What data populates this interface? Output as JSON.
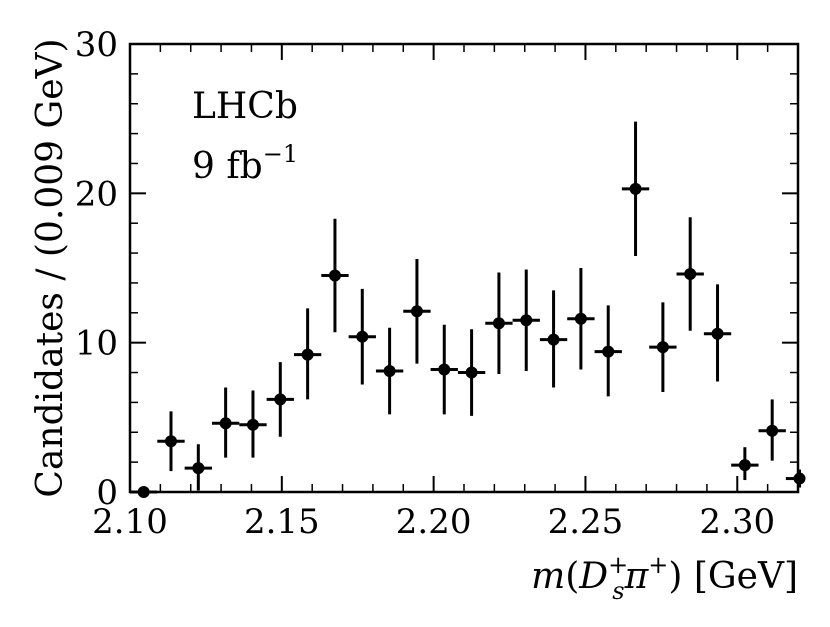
{
  "chart_data": {
    "type": "scatter",
    "experiment_label": "LHCb",
    "luminosity_label": "9 fb",
    "luminosity_exponent": "−1",
    "xlabel_parts": {
      "m": "m",
      "open": "(",
      "D": "D",
      "D_sub": "s",
      "D_sup": "+",
      "pi": "π",
      "pi_sup": "+",
      "close": ")",
      "unit": " [GeV]"
    },
    "ylabel": "Candidates / (0.009 GeV)",
    "xlim": [
      2.1,
      2.32
    ],
    "ylim": [
      0,
      30
    ],
    "xticks": [
      "2.10",
      "2.15",
      "2.20",
      "2.25",
      "2.30"
    ],
    "yticks": [
      "0",
      "10",
      "20",
      "30"
    ],
    "bin_width": 0.009,
    "points": [
      {
        "x": 2.1045,
        "y": 0.0,
        "err_low": 0.0,
        "err_high": 0.0
      },
      {
        "x": 2.1135,
        "y": 3.4,
        "err_low": 2.0,
        "err_high": 2.0
      },
      {
        "x": 2.1225,
        "y": 1.6,
        "err_low": 1.5,
        "err_high": 1.6
      },
      {
        "x": 2.1315,
        "y": 4.6,
        "err_low": 2.3,
        "err_high": 2.4
      },
      {
        "x": 2.1405,
        "y": 4.5,
        "err_low": 2.2,
        "err_high": 2.3
      },
      {
        "x": 2.1495,
        "y": 6.2,
        "err_low": 2.5,
        "err_high": 2.5
      },
      {
        "x": 2.1585,
        "y": 9.2,
        "err_low": 3.0,
        "err_high": 3.1
      },
      {
        "x": 2.1675,
        "y": 14.5,
        "err_low": 3.8,
        "err_high": 3.8
      },
      {
        "x": 2.1765,
        "y": 10.4,
        "err_low": 3.2,
        "err_high": 3.2
      },
      {
        "x": 2.1855,
        "y": 8.1,
        "err_low": 2.9,
        "err_high": 2.9
      },
      {
        "x": 2.1945,
        "y": 12.1,
        "err_low": 3.5,
        "err_high": 3.5
      },
      {
        "x": 2.2035,
        "y": 8.2,
        "err_low": 3.0,
        "err_high": 3.0
      },
      {
        "x": 2.2125,
        "y": 8.0,
        "err_low": 2.9,
        "err_high": 2.9
      },
      {
        "x": 2.2215,
        "y": 11.3,
        "err_low": 3.4,
        "err_high": 3.4
      },
      {
        "x": 2.2305,
        "y": 11.5,
        "err_low": 3.4,
        "err_high": 3.4
      },
      {
        "x": 2.2395,
        "y": 10.2,
        "err_low": 3.2,
        "err_high": 3.3
      },
      {
        "x": 2.2485,
        "y": 11.6,
        "err_low": 3.4,
        "err_high": 3.4
      },
      {
        "x": 2.2575,
        "y": 9.4,
        "err_low": 3.0,
        "err_high": 3.1
      },
      {
        "x": 2.2665,
        "y": 20.3,
        "err_low": 4.5,
        "err_high": 4.5
      },
      {
        "x": 2.2755,
        "y": 9.7,
        "err_low": 3.0,
        "err_high": 3.0
      },
      {
        "x": 2.2845,
        "y": 14.6,
        "err_low": 3.8,
        "err_high": 3.8
      },
      {
        "x": 2.2935,
        "y": 10.6,
        "err_low": 3.2,
        "err_high": 3.3
      },
      {
        "x": 2.3025,
        "y": 1.8,
        "err_low": 1.0,
        "err_high": 1.2
      },
      {
        "x": 2.3115,
        "y": 4.1,
        "err_low": 2.0,
        "err_high": 2.1
      },
      {
        "x": 2.3205,
        "y": 0.9,
        "err_low": 0.6,
        "err_high": 0.6
      }
    ]
  }
}
